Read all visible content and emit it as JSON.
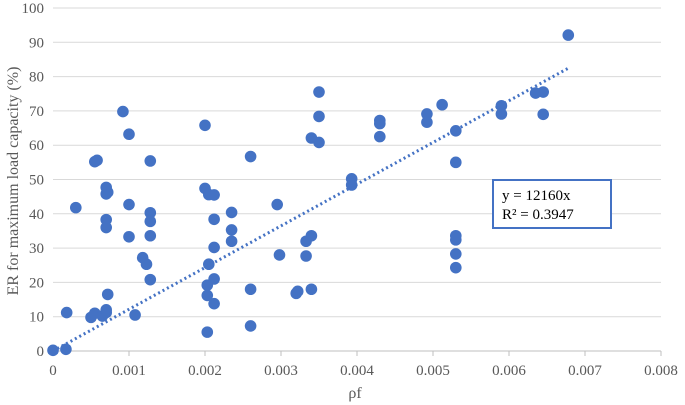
{
  "chart_data": {
    "type": "scatter",
    "xlabel": "ρf",
    "ylabel": "ER for maximum load capacity (%)",
    "xlim": [
      0,
      0.008
    ],
    "ylim": [
      0,
      100
    ],
    "x_ticks": [
      "0",
      "0.001",
      "0.002",
      "0.003",
      "0.004",
      "0.005",
      "0.006",
      "0.007",
      "0.008"
    ],
    "y_ticks": [
      "0",
      "10",
      "20",
      "30",
      "40",
      "50",
      "60",
      "70",
      "80",
      "90",
      "100"
    ],
    "grid": "horizontal",
    "point_color": "#4472C4",
    "trendline": {
      "style": "dotted",
      "slope": 12160,
      "x_end": 0.00678,
      "equation": "y = 12160x",
      "r_squared": "R² = 0.3947"
    },
    "points": [
      [
        0.0,
        0.2
      ],
      [
        0.00017,
        0.5
      ],
      [
        0.00018,
        11.2
      ],
      [
        0.0003,
        41.8
      ],
      [
        0.0005,
        9.8
      ],
      [
        0.00055,
        11.0
      ],
      [
        0.00055,
        55.2
      ],
      [
        0.00058,
        55.6
      ],
      [
        0.00065,
        10.2
      ],
      [
        0.0007,
        11.2
      ],
      [
        0.0007,
        12.0
      ],
      [
        0.00072,
        16.5
      ],
      [
        0.0007,
        36.0
      ],
      [
        0.0007,
        38.3
      ],
      [
        0.0007,
        45.8
      ],
      [
        0.00072,
        46.3
      ],
      [
        0.0007,
        47.7
      ],
      [
        0.00092,
        69.8
      ],
      [
        0.001,
        33.3
      ],
      [
        0.001,
        42.7
      ],
      [
        0.001,
        63.2
      ],
      [
        0.00108,
        10.5
      ],
      [
        0.00118,
        27.2
      ],
      [
        0.00123,
        25.3
      ],
      [
        0.00128,
        20.8
      ],
      [
        0.00128,
        33.6
      ],
      [
        0.00128,
        37.8
      ],
      [
        0.00128,
        40.3
      ],
      [
        0.00128,
        55.4
      ],
      [
        0.002,
        47.4
      ],
      [
        0.002,
        65.8
      ],
      [
        0.00203,
        5.5
      ],
      [
        0.00203,
        16.2
      ],
      [
        0.00203,
        19.2
      ],
      [
        0.00205,
        25.3
      ],
      [
        0.00205,
        45.6
      ],
      [
        0.00212,
        13.8
      ],
      [
        0.00212,
        21.0
      ],
      [
        0.00212,
        30.2
      ],
      [
        0.00212,
        38.4
      ],
      [
        0.00212,
        45.5
      ],
      [
        0.00235,
        32.0
      ],
      [
        0.00235,
        35.3
      ],
      [
        0.00235,
        40.4
      ],
      [
        0.0026,
        7.3
      ],
      [
        0.0026,
        18.0
      ],
      [
        0.0026,
        56.7
      ],
      [
        0.00295,
        42.7
      ],
      [
        0.00298,
        28.0
      ],
      [
        0.0032,
        16.8
      ],
      [
        0.00322,
        17.4
      ],
      [
        0.00333,
        27.7
      ],
      [
        0.00333,
        32.0
      ],
      [
        0.0034,
        18.0
      ],
      [
        0.0034,
        33.6
      ],
      [
        0.0034,
        62.1
      ],
      [
        0.0035,
        60.8
      ],
      [
        0.0035,
        68.4
      ],
      [
        0.0035,
        75.5
      ],
      [
        0.00393,
        48.4
      ],
      [
        0.00393,
        50.2
      ],
      [
        0.0043,
        62.5
      ],
      [
        0.0043,
        66.3
      ],
      [
        0.0043,
        67.2
      ],
      [
        0.00492,
        66.7
      ],
      [
        0.00492,
        69.1
      ],
      [
        0.00512,
        71.8
      ],
      [
        0.0053,
        24.3
      ],
      [
        0.0053,
        28.3
      ],
      [
        0.0053,
        32.4
      ],
      [
        0.0053,
        33.6
      ],
      [
        0.0053,
        55.0
      ],
      [
        0.0053,
        64.2
      ],
      [
        0.0059,
        69.1
      ],
      [
        0.0059,
        71.5
      ],
      [
        0.00635,
        75.2
      ],
      [
        0.00645,
        69.0
      ],
      [
        0.00645,
        75.5
      ],
      [
        0.00678,
        92.1
      ]
    ]
  }
}
